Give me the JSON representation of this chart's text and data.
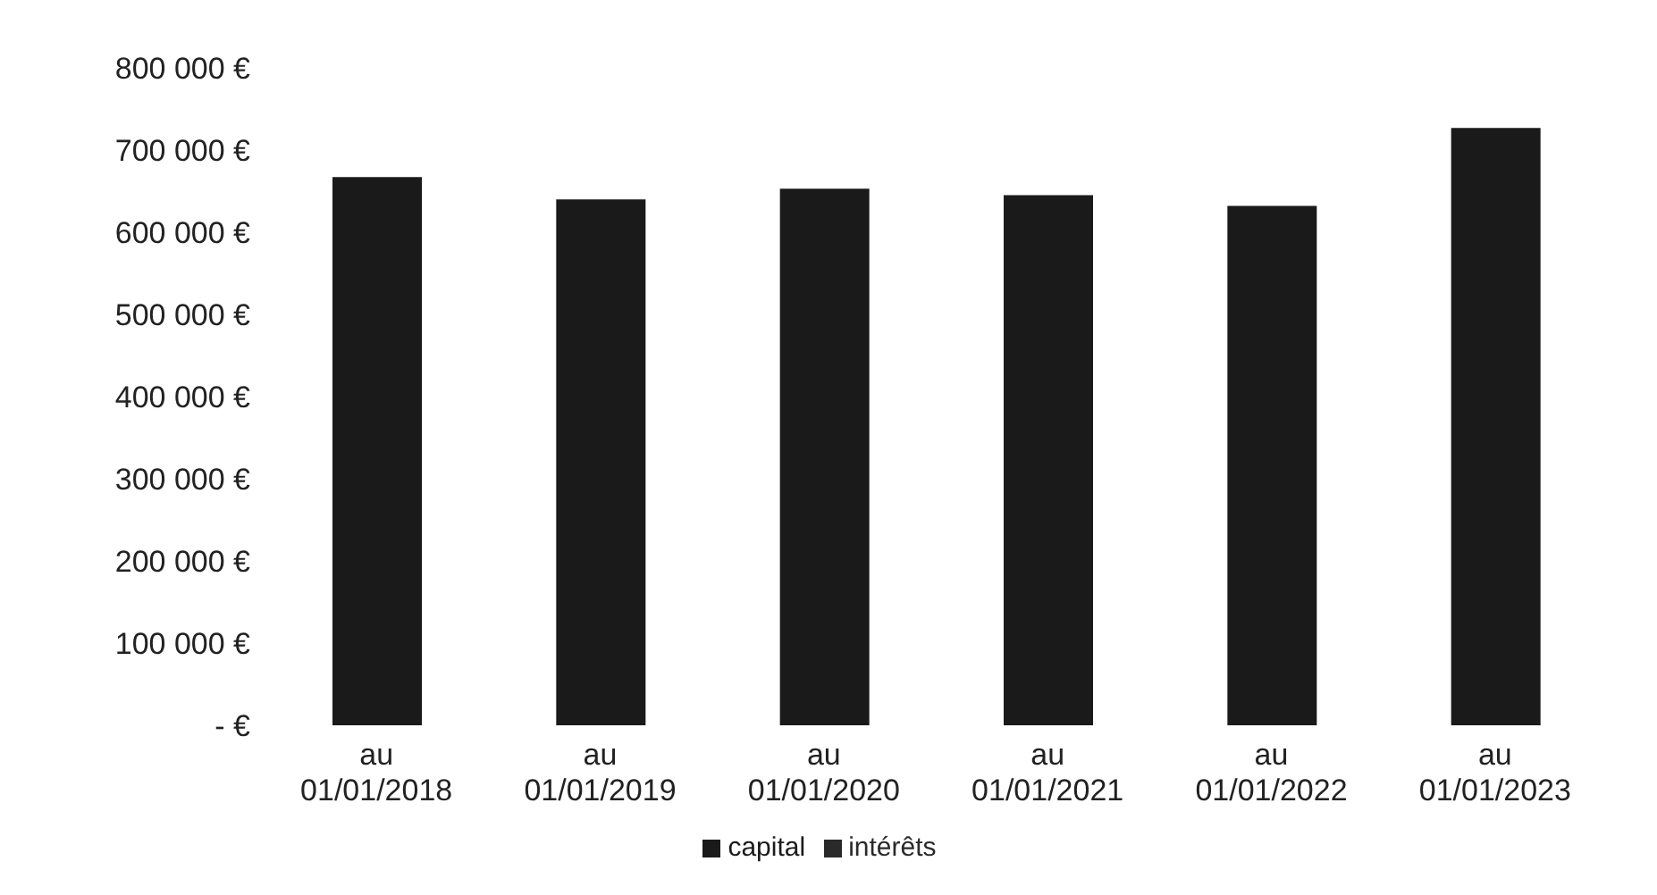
{
  "chart_data": {
    "type": "bar",
    "stacked": true,
    "categories": [
      "au 01/01/2018",
      "au 01/01/2019",
      "au 01/01/2020",
      "au 01/01/2021",
      "au 01/01/2022",
      "au 01/01/2023"
    ],
    "series": [
      {
        "name": "capital",
        "color": "#1a1a1a",
        "values": [
          667000,
          640000,
          653000,
          645000,
          632000,
          727000
        ]
      },
      {
        "name": "intérêts",
        "color": "#2a2a2a",
        "values": [
          0,
          0,
          0,
          0,
          0,
          0
        ]
      }
    ],
    "ylim": [
      0,
      800000
    ],
    "yticks": [
      {
        "value": 0,
        "label": "-   €"
      },
      {
        "value": 100000,
        "label": "100 000 €"
      },
      {
        "value": 200000,
        "label": "200 000 €"
      },
      {
        "value": 300000,
        "label": "300 000 €"
      },
      {
        "value": 400000,
        "label": "400 000 €"
      },
      {
        "value": 500000,
        "label": "500 000 €"
      },
      {
        "value": 600000,
        "label": "600 000 €"
      },
      {
        "value": 700000,
        "label": "700 000 €"
      },
      {
        "value": 800000,
        "label": "800 000 €"
      }
    ],
    "legend": "bottom"
  }
}
